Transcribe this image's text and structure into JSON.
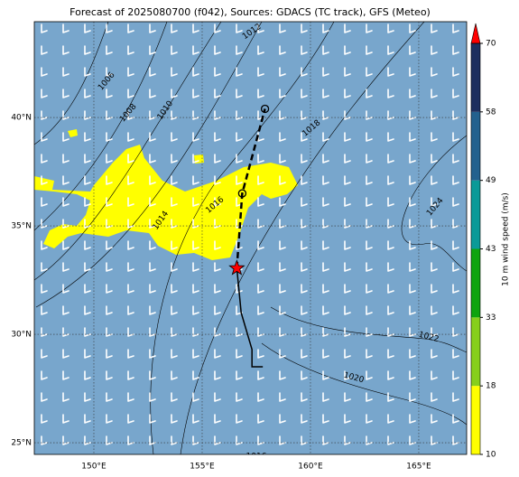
{
  "title": "Forecast of 2025080700 (f042), Sources: GDACS (TC track), GFS (Meteo)",
  "map": {
    "xlim": [
      147.25,
      167.21
    ],
    "ylim": [
      24.46,
      44.42
    ],
    "xticks": [
      {
        "value": 150,
        "label": "150°E"
      },
      {
        "value": 155,
        "label": "155°E"
      },
      {
        "value": 160,
        "label": "160°E"
      },
      {
        "value": 165,
        "label": "165°E"
      }
    ],
    "yticks": [
      {
        "value": 25,
        "label": "25°N"
      },
      {
        "value": 30,
        "label": "30°N"
      },
      {
        "value": 35,
        "label": "35°N"
      },
      {
        "value": 40,
        "label": "40°N"
      }
    ],
    "isobar_labels": [
      "1006",
      "1008",
      "1010",
      "1012",
      "1014",
      "1016",
      "1018",
      "1020",
      "1022",
      "1024",
      "1016"
    ],
    "track": {
      "past": {
        "lon": [
          156.6,
          156.8,
          157.3,
          157.3,
          157.8
        ],
        "lat": [
          33.05,
          31.0,
          29.3,
          28.5,
          28.5
        ]
      },
      "forecast": {
        "lon": [
          156.6,
          156.85,
          157.9
        ],
        "lat": [
          33.05,
          36.5,
          40.4
        ]
      }
    }
  },
  "colorbar": {
    "label": "10 m wind speed (m/s)",
    "ticks": [
      10,
      18,
      33,
      43,
      49,
      58,
      70
    ],
    "colors": [
      "#ffff00",
      "#86cf1c",
      "#0ea40e",
      "#0a9a98",
      "#23618e",
      "#1d2f5e"
    ],
    "extend_color": "#ff0000"
  }
}
